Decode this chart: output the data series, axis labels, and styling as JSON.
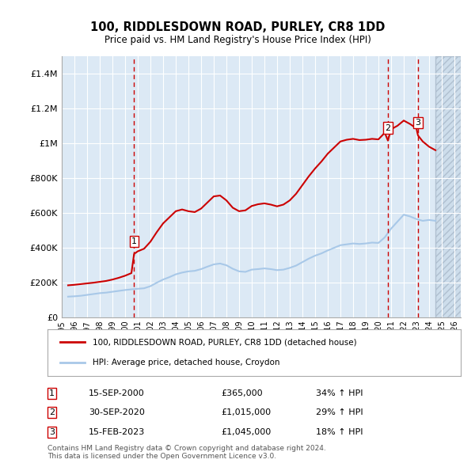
{
  "title": "100, RIDDLESDOWN ROAD, PURLEY, CR8 1DD",
  "subtitle": "Price paid vs. HM Land Registry's House Price Index (HPI)",
  "footer1": "Contains HM Land Registry data © Crown copyright and database right 2024.",
  "footer2": "This data is licensed under the Open Government Licence v3.0.",
  "legend_entry1": "100, RIDDLESDOWN ROAD, PURLEY, CR8 1DD (detached house)",
  "legend_entry2": "HPI: Average price, detached house, Croydon",
  "transactions": [
    {
      "label": "1",
      "date": "15-SEP-2000",
      "price": 365000,
      "pct": "34%",
      "year": 2000.71
    },
    {
      "label": "2",
      "date": "30-SEP-2020",
      "price": 1015000,
      "pct": "29%",
      "year": 2020.75
    },
    {
      "label": "3",
      "date": "15-FEB-2023",
      "price": 1045000,
      "pct": "18%",
      "year": 2023.12
    }
  ],
  "hpi_color": "#a8c8e8",
  "price_color": "#cc0000",
  "vline_color": "#cc0000",
  "background_color": "#dce9f5",
  "plot_bg": "#dce9f5",
  "grid_color": "#ffffff",
  "hatch_color": "#c8d8e8",
  "ylim": [
    0,
    1500000
  ],
  "xlim_start": 1995.0,
  "xlim_end": 2026.5,
  "yticks": [
    0,
    200000,
    400000,
    600000,
    800000,
    1000000,
    1200000,
    1400000
  ],
  "xticks": [
    1995,
    1996,
    1997,
    1998,
    1999,
    2000,
    2001,
    2002,
    2003,
    2004,
    2005,
    2006,
    2007,
    2008,
    2009,
    2010,
    2011,
    2012,
    2013,
    2014,
    2015,
    2016,
    2017,
    2018,
    2019,
    2020,
    2021,
    2022,
    2023,
    2024,
    2025,
    2026
  ],
  "hpi_data": {
    "years": [
      1995.5,
      1996.0,
      1996.5,
      1997.0,
      1997.5,
      1998.0,
      1998.5,
      1999.0,
      1999.5,
      2000.0,
      2000.5,
      2001.0,
      2001.5,
      2002.0,
      2002.5,
      2003.0,
      2003.5,
      2004.0,
      2004.5,
      2005.0,
      2005.5,
      2006.0,
      2006.5,
      2007.0,
      2007.5,
      2008.0,
      2008.5,
      2009.0,
      2009.5,
      2010.0,
      2010.5,
      2011.0,
      2011.5,
      2012.0,
      2012.5,
      2013.0,
      2013.5,
      2014.0,
      2014.5,
      2015.0,
      2015.5,
      2016.0,
      2016.5,
      2017.0,
      2017.5,
      2018.0,
      2018.5,
      2019.0,
      2019.5,
      2020.0,
      2020.5,
      2021.0,
      2021.5,
      2022.0,
      2022.5,
      2023.0,
      2023.5,
      2024.0,
      2024.5
    ],
    "values": [
      120000,
      122000,
      125000,
      130000,
      135000,
      140000,
      143000,
      148000,
      153000,
      158000,
      162000,
      165000,
      168000,
      180000,
      200000,
      218000,
      232000,
      248000,
      258000,
      265000,
      268000,
      278000,
      292000,
      305000,
      310000,
      300000,
      280000,
      265000,
      262000,
      275000,
      278000,
      282000,
      278000,
      272000,
      275000,
      285000,
      298000,
      318000,
      338000,
      355000,
      368000,
      385000,
      400000,
      415000,
      420000,
      425000,
      422000,
      425000,
      430000,
      428000,
      460000,
      510000,
      550000,
      590000,
      580000,
      565000,
      555000,
      560000,
      555000
    ]
  },
  "price_data": {
    "years": [
      1995.5,
      1996.0,
      1996.5,
      1997.0,
      1997.5,
      1998.0,
      1998.5,
      1999.0,
      1999.5,
      2000.0,
      2000.5,
      2000.71,
      2001.0,
      2001.5,
      2002.0,
      2002.5,
      2003.0,
      2003.5,
      2004.0,
      2004.5,
      2005.0,
      2005.5,
      2006.0,
      2006.5,
      2007.0,
      2007.5,
      2008.0,
      2008.5,
      2009.0,
      2009.5,
      2010.0,
      2010.5,
      2011.0,
      2011.5,
      2012.0,
      2012.5,
      2013.0,
      2013.5,
      2014.0,
      2014.5,
      2015.0,
      2015.5,
      2016.0,
      2016.5,
      2017.0,
      2017.5,
      2018.0,
      2018.5,
      2019.0,
      2019.5,
      2020.0,
      2020.5,
      2020.75,
      2021.0,
      2021.5,
      2022.0,
      2022.5,
      2023.0,
      2023.12,
      2023.5,
      2024.0,
      2024.5
    ],
    "values": [
      185000,
      188000,
      192000,
      196000,
      200000,
      205000,
      210000,
      218000,
      228000,
      240000,
      255000,
      365000,
      380000,
      395000,
      435000,
      490000,
      540000,
      575000,
      610000,
      620000,
      610000,
      605000,
      625000,
      660000,
      695000,
      700000,
      672000,
      630000,
      610000,
      615000,
      640000,
      650000,
      655000,
      648000,
      638000,
      648000,
      672000,
      710000,
      760000,
      810000,
      855000,
      895000,
      940000,
      975000,
      1010000,
      1020000,
      1025000,
      1018000,
      1020000,
      1025000,
      1022000,
      1060000,
      1015000,
      1080000,
      1100000,
      1130000,
      1110000,
      1085000,
      1045000,
      1010000,
      980000,
      960000
    ]
  }
}
